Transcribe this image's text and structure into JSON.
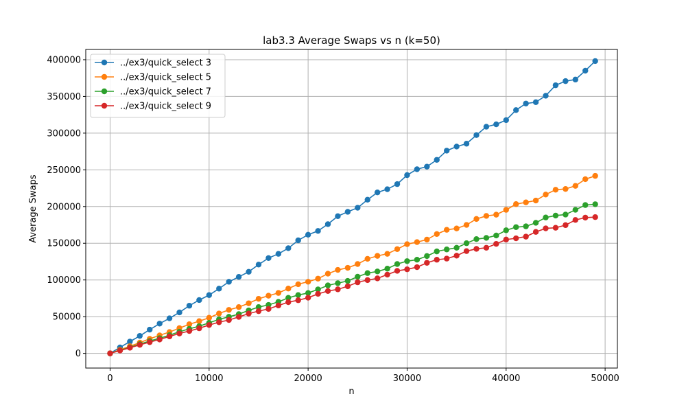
{
  "chart_data": {
    "type": "line",
    "title": "lab3.3 Average Swaps vs n (k=50)",
    "xlabel": "n",
    "ylabel": "Average Swaps",
    "xlim": [
      -2460,
      51240
    ],
    "ylim": [
      -20000,
      414000
    ],
    "xticks": [
      0,
      10000,
      20000,
      30000,
      40000,
      50000
    ],
    "yticks": [
      0,
      50000,
      100000,
      150000,
      200000,
      250000,
      300000,
      350000,
      400000
    ],
    "grid": true,
    "legend_position": "top-left",
    "x": {
      "start": 0,
      "step": 1000,
      "count": 50
    },
    "series": [
      {
        "name": "../ex3/quick_select 3",
        "color": "#1f77b4",
        "per_unit": 8.03
      },
      {
        "name": "../ex3/quick_select 5",
        "color": "#ff7f0e",
        "per_unit": 4.9
      },
      {
        "name": "../ex3/quick_select 7",
        "color": "#2ca02c",
        "per_unit": 4.16
      },
      {
        "name": "../ex3/quick_select 9",
        "color": "#d62728",
        "per_unit": 3.83
      }
    ]
  }
}
